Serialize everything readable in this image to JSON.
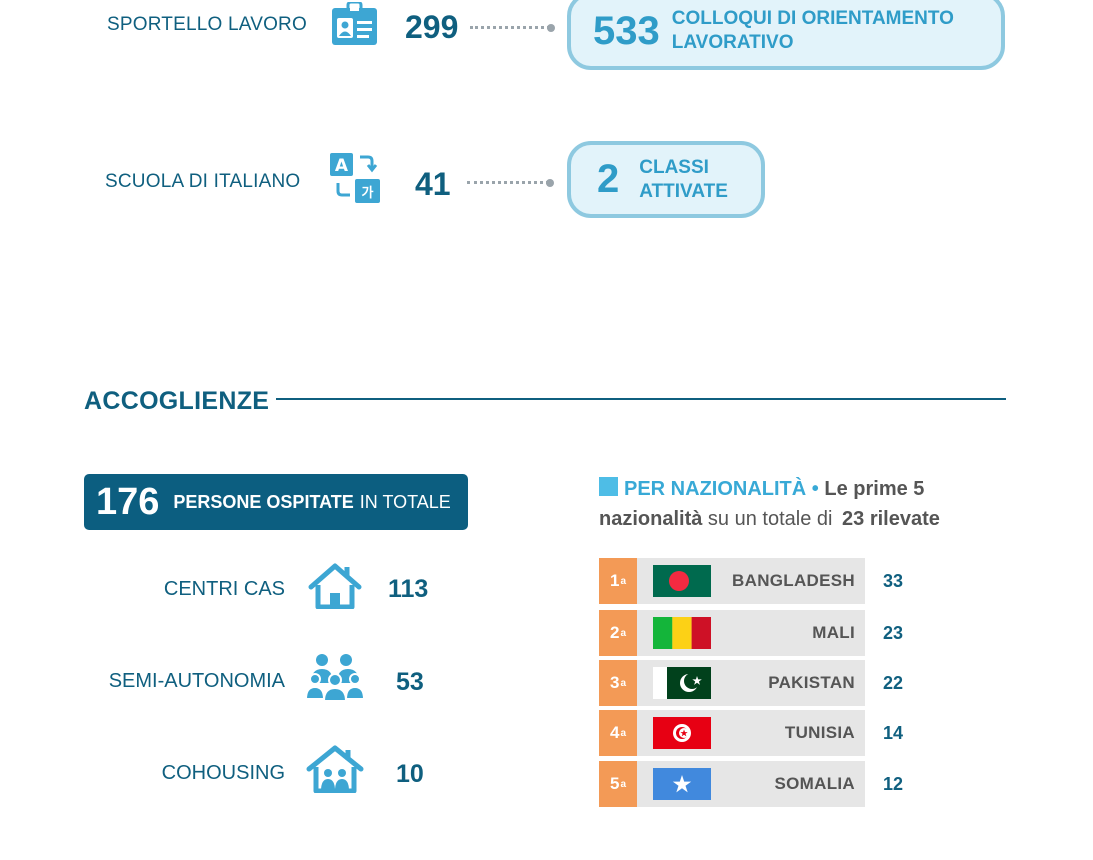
{
  "services": [
    {
      "label": "SPORTELLO LAVORO",
      "icon": "id-badge-icon",
      "count": "299",
      "pill_number": "533",
      "pill_text_line1": "COLLOQUI DI ORIENTAMENTO",
      "pill_text_line2": "LAVORATIVO"
    },
    {
      "label": "SCUOLA DI ITALIANO",
      "icon": "translate-icon",
      "count": "41",
      "pill_number": "2",
      "pill_text_line1": "CLASSI",
      "pill_text_line2": "ATTIVATE"
    }
  ],
  "accoglienze": {
    "title": "ACCOGLIENZE",
    "total_number": "176",
    "total_strong": "PERSONE OSPITATE",
    "total_rest": "IN TOTALE",
    "items": [
      {
        "label": "CENTRI CAS",
        "icon": "house-icon",
        "count": "113"
      },
      {
        "label": "SEMI-AUTONOMIA",
        "icon": "people-group-icon",
        "count": "53"
      },
      {
        "label": "COHOUSING",
        "icon": "house-people-icon",
        "count": "10"
      }
    ]
  },
  "nationality": {
    "heading_title": "PER NAZIONALITÀ",
    "heading_bullet": "•",
    "heading_part1": "Le prime 5",
    "heading_part2": "nazionalità",
    "heading_part3": "su un totale di",
    "heading_part4": "23 rilevate",
    "rows": [
      {
        "rank": "1",
        "rank_suffix": "a",
        "country": "BANGLADESH",
        "count": "33",
        "flag": "bangladesh-flag-icon"
      },
      {
        "rank": "2",
        "rank_suffix": "a",
        "country": "MALI",
        "count": "23",
        "flag": "mali-flag-icon"
      },
      {
        "rank": "3",
        "rank_suffix": "a",
        "country": "PAKISTAN",
        "count": "22",
        "flag": "pakistan-flag-icon"
      },
      {
        "rank": "4",
        "rank_suffix": "a",
        "country": "TUNISIA",
        "count": "14",
        "flag": "tunisia-flag-icon"
      },
      {
        "rank": "5",
        "rank_suffix": "a",
        "country": "SOMALIA",
        "count": "12",
        "flag": "somalia-flag-icon"
      }
    ]
  },
  "colors": {
    "primary": "#0f5f7f",
    "accent": "#2f9cc8",
    "pill_border": "#8ec9e0",
    "pill_bg": "#e2f3fa",
    "rank_orange": "#f39a56",
    "bar_grey": "#e6e6e6"
  }
}
